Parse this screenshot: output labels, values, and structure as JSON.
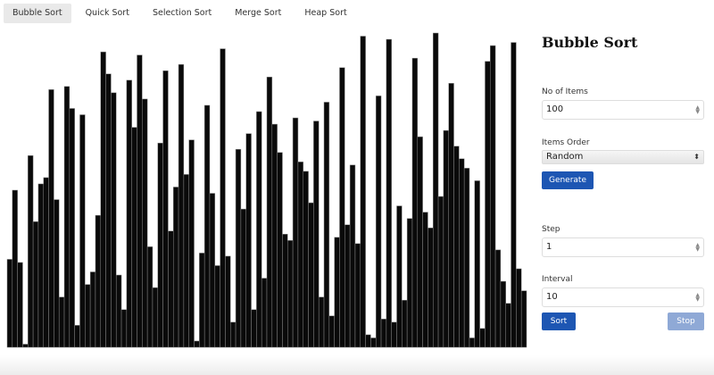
{
  "tabs": [
    {
      "label": "Bubble Sort",
      "active": true
    },
    {
      "label": "Quick Sort",
      "active": false
    },
    {
      "label": "Selection Sort",
      "active": false
    },
    {
      "label": "Merge Sort",
      "active": false
    },
    {
      "label": "Heap Sort",
      "active": false
    }
  ],
  "panel": {
    "title": "Bubble Sort",
    "items_label": "No of Items",
    "items_value": "100",
    "order_label": "Items Order",
    "order_value": "Random",
    "generate_label": "Generate",
    "step_label": "Step",
    "step_value": "1",
    "interval_label": "Interval",
    "interval_value": "10",
    "sort_label": "Sort",
    "stop_label": "Stop"
  },
  "colors": {
    "bar": "#0a0a0a",
    "bar_border": "#888888",
    "primary": "#1d56b3",
    "disabled": "#8fa9d6"
  },
  "chart_data": {
    "type": "bar",
    "ylim": [
      0,
      100
    ],
    "values": [
      28,
      50,
      27,
      1,
      61,
      40,
      52,
      54,
      82,
      47,
      16,
      83,
      76,
      7,
      74,
      20,
      24,
      42,
      94,
      87,
      81,
      23,
      12,
      85,
      70,
      93,
      79,
      32,
      19,
      65,
      88,
      37,
      51,
      90,
      55,
      66,
      2,
      30,
      77,
      49,
      26,
      95,
      29,
      8,
      63,
      44,
      68,
      12,
      75,
      22,
      86,
      71,
      62,
      36,
      34,
      73,
      59,
      56,
      46,
      72,
      16,
      78,
      10,
      35,
      89,
      39,
      58,
      33,
      99,
      4,
      3,
      80,
      9,
      98,
      8,
      45,
      15,
      41,
      92,
      67,
      43,
      38,
      100,
      48,
      69,
      84,
      64,
      60,
      57,
      3,
      53,
      6,
      91,
      96,
      31,
      21,
      14,
      97,
      25,
      18
    ]
  }
}
